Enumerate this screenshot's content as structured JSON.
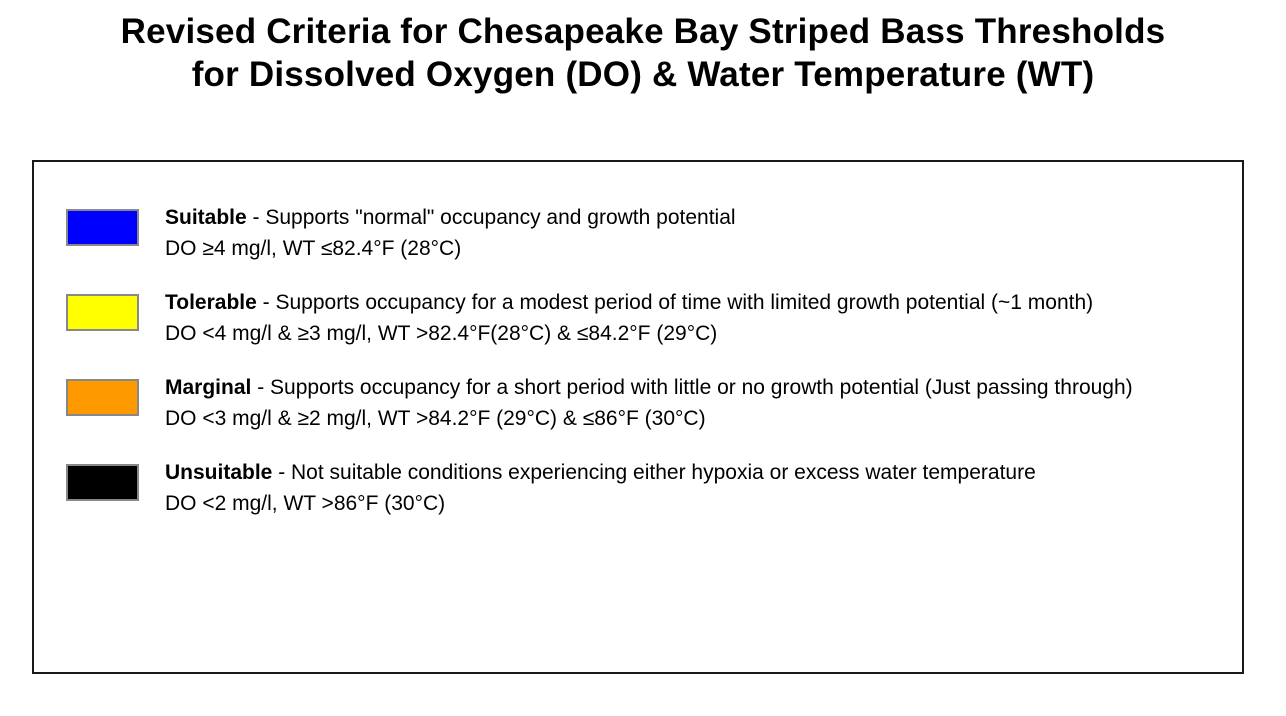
{
  "title": {
    "line1": "Revised Criteria for Chesapeake Bay Striped Bass Thresholds",
    "line2": "for Dissolved Oxygen (DO) & Water Temperature (WT)"
  },
  "legend": {
    "entries": [
      {
        "name": "Suitable",
        "color": "#0000ff",
        "description": " - Supports \"normal\" occupancy and growth potential",
        "criteria": "DO ≥4 mg/l, WT ≤82.4°F (28°C)"
      },
      {
        "name": "Tolerable",
        "color": "#ffff00",
        "description": " - Supports occupancy for a modest period of time with limited growth potential (~1 month)",
        "criteria": "DO <4 mg/l & ≥3 mg/l, WT >82.4°F(28°C) & ≤84.2°F (29°C)"
      },
      {
        "name": "Marginal",
        "color": "#ff9900",
        "description": " - Supports occupancy for a short period with little or no growth potential (Just passing through)",
        "criteria": "DO <3 mg/l & ≥2 mg/l, WT >84.2°F (29°C) & ≤86°F (30°C)"
      },
      {
        "name": "Unsuitable",
        "color": "#000000",
        "description": " - Not suitable conditions experiencing either hypoxia or excess water temperature",
        "criteria": "DO <2 mg/l, WT >86°F (30°C)"
      }
    ]
  },
  "colors": {
    "box_border": "#1a1a1a",
    "swatch_border": "#888888"
  }
}
